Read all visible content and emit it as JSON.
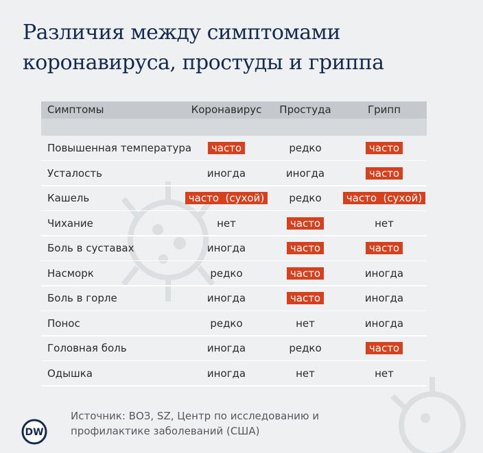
{
  "header": {
    "title": [
      "Различия между симптомами",
      "коронавируса, простуды и гриппа"
    ]
  },
  "table": {
    "columns": [
      "Симптомы",
      "Коронавирус",
      "Простуда",
      "Грипп"
    ],
    "rows": [
      {
        "symptom": "Повышенная температура",
        "values": [
          "часто",
          "редко",
          "часто"
        ],
        "highlight": [
          true,
          false,
          true
        ]
      },
      {
        "symptom": "Усталость",
        "values": [
          "иногда",
          "иногда",
          "часто"
        ],
        "highlight": [
          false,
          false,
          true
        ]
      },
      {
        "symptom": "Кашель",
        "values": [
          "часто  (сухой)",
          "редко",
          "часто  (сухой)"
        ],
        "highlight": [
          true,
          false,
          true
        ]
      },
      {
        "symptom": "Чихание",
        "values": [
          "нет",
          "часто",
          "нет"
        ],
        "highlight": [
          false,
          true,
          false
        ]
      },
      {
        "symptom": "Боль в суставах",
        "values": [
          "иногда",
          "часто",
          "часто"
        ],
        "highlight": [
          false,
          true,
          true
        ]
      },
      {
        "symptom": "Насморк",
        "values": [
          "редко",
          "часто",
          "иногда"
        ],
        "highlight": [
          false,
          true,
          false
        ]
      },
      {
        "symptom": "Боль в горле",
        "values": [
          "иногда",
          "часто",
          "иногда"
        ],
        "highlight": [
          false,
          true,
          false
        ]
      },
      {
        "symptom": "Понос",
        "values": [
          "редко",
          "нет",
          "иногда"
        ],
        "highlight": [
          false,
          false,
          false
        ]
      },
      {
        "symptom": "Головная боль",
        "values": [
          "иногда",
          "редко",
          "часто"
        ],
        "highlight": [
          false,
          false,
          true
        ]
      },
      {
        "symptom": "Одышка",
        "values": [
          "иногда",
          "нет",
          "нет"
        ],
        "highlight": [
          false,
          false,
          false
        ]
      }
    ]
  },
  "footer": {
    "logo": "DW",
    "source": [
      "Источник: ВОЗ, SZ, Центр по исследованию и",
      "профилактике заболеваний (США)"
    ]
  }
}
